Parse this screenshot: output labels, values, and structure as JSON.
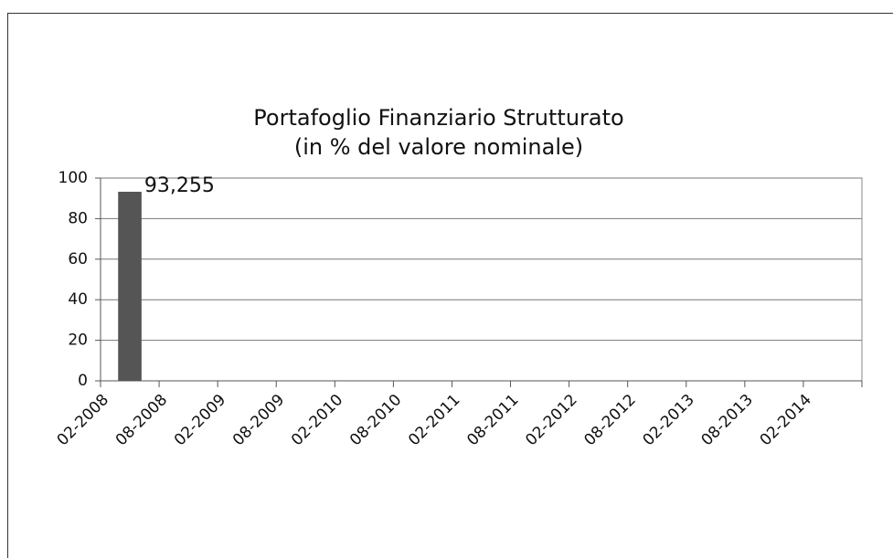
{
  "chart_data": {
    "type": "bar",
    "title": "Portafoglio Finanziario Strutturato",
    "subtitle": "(in % del valore nominale)",
    "categories": [
      "02-2008",
      "08-2008",
      "02-2009",
      "08-2009",
      "02-2010",
      "08-2010",
      "02-2011",
      "08-2011",
      "02-2012",
      "08-2012",
      "02-2013",
      "08-2013",
      "02-2014"
    ],
    "values": [
      93.255,
      null,
      null,
      null,
      null,
      null,
      null,
      null,
      null,
      null,
      null,
      null,
      null
    ],
    "value_labels": [
      "93,255",
      null,
      null,
      null,
      null,
      null,
      null,
      null,
      null,
      null,
      null,
      null,
      null
    ],
    "color": "#555555",
    "ylim": [
      0,
      100
    ],
    "yticks": [
      0,
      20,
      40,
      60,
      80,
      100
    ],
    "grid": true
  }
}
